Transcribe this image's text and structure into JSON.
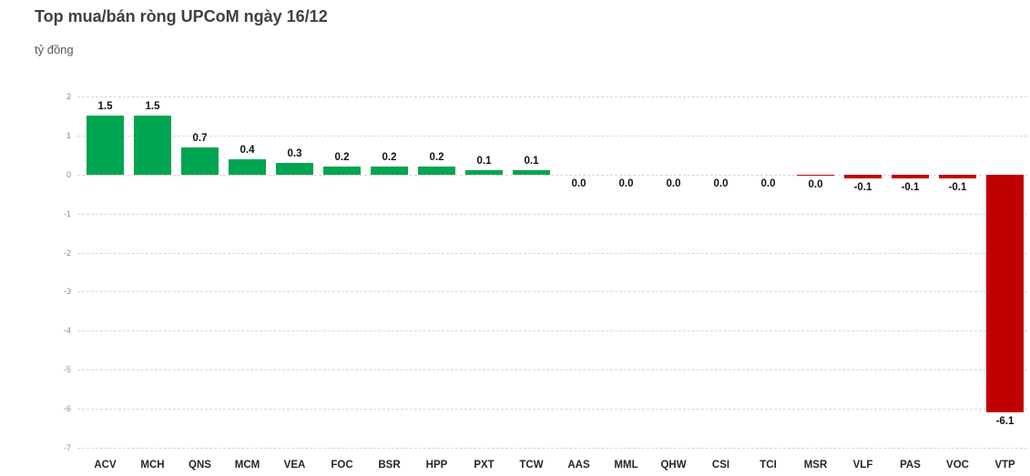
{
  "chart": {
    "title": "Top mua/bán ròng UPCoM ngày 16/12",
    "subtitle": "tỷ đồng"
  },
  "chart_data": {
    "type": "bar",
    "title": "Top mua/bán ròng UPCoM ngày 16/12",
    "ylabel": "tỷ đồng",
    "categories": [
      "ACV",
      "MCH",
      "QNS",
      "MCM",
      "VEA",
      "FOC",
      "BSR",
      "HPP",
      "PXT",
      "TCW",
      "AAS",
      "MML",
      "QHW",
      "CSI",
      "TCI",
      "MSR",
      "VLF",
      "PAS",
      "VOC",
      "VTP"
    ],
    "values": [
      1.5,
      1.5,
      0.7,
      0.4,
      0.3,
      0.2,
      0.2,
      0.2,
      0.1,
      0.1,
      0.0,
      0.0,
      0.0,
      0.0,
      0.0,
      -0.04,
      -0.1,
      -0.1,
      -0.1,
      -6.1
    ],
    "value_labels": [
      "1.5",
      "1.5",
      "0.7",
      "0.4",
      "0.3",
      "0.2",
      "0.2",
      "0.2",
      "0.1",
      "0.1",
      "0.0",
      "0.0",
      "0.0",
      "0.0",
      "0.0",
      "0.0",
      "-0.1",
      "-0.1",
      "-0.1",
      "-6.1"
    ],
    "ylim": [
      -7,
      2
    ],
    "ytick_step": 1,
    "grid": true,
    "legend": "none",
    "positive_color": "#00a551",
    "negative_color": "#c00000"
  }
}
